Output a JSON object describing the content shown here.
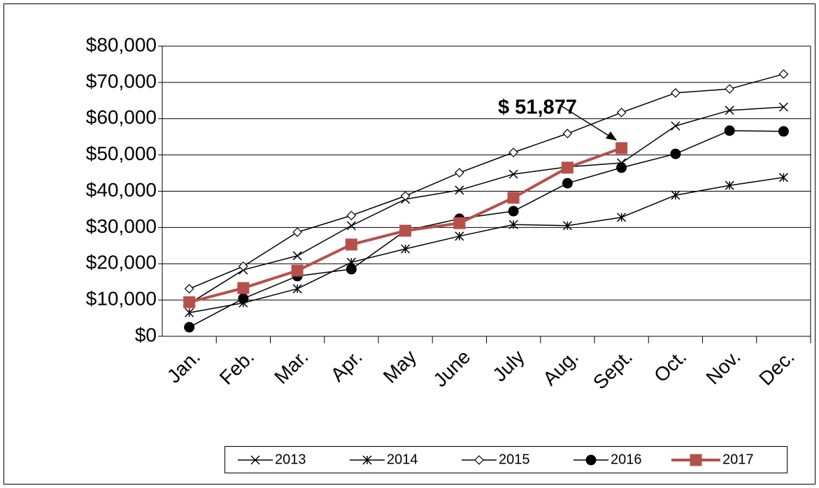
{
  "chart_data": {
    "type": "line",
    "annotation": "$ 51,877",
    "categories": [
      "Jan.",
      "Feb.",
      "Mar.",
      "Apr.",
      "May",
      "June",
      "July",
      "Aug.",
      "Sept.",
      "Oct.",
      "Nov.",
      "Dec."
    ],
    "series": [
      {
        "name": "2013",
        "color": "#000000",
        "marker": "x",
        "values": [
          9000,
          18300,
          22200,
          30500,
          37800,
          40300,
          44700,
          46700,
          47800,
          58000,
          62300,
          63200
        ]
      },
      {
        "name": "2014",
        "color": "#000000",
        "marker": "asterisk",
        "values": [
          6500,
          9200,
          13100,
          20400,
          24100,
          27600,
          30800,
          30500,
          32800,
          38900,
          41600,
          43800
        ]
      },
      {
        "name": "2015",
        "color": "#000000",
        "marker": "diamond",
        "values": [
          13100,
          19300,
          28700,
          33300,
          38700,
          45100,
          50700,
          55900,
          61700,
          67100,
          68200,
          72300
        ]
      },
      {
        "name": "2016",
        "color": "#000000",
        "marker": "circle",
        "values": [
          2500,
          10400,
          16600,
          18500,
          29100,
          32400,
          34500,
          42200,
          46500,
          50300,
          56700,
          56500
        ]
      },
      {
        "name": "2017",
        "color": "#b5504b",
        "marker": "square",
        "values": [
          9400,
          13300,
          18100,
          25300,
          29100,
          31200,
          38200,
          46500,
          51877,
          null,
          null,
          null
        ]
      }
    ],
    "ylim": [
      0,
      80000
    ],
    "yticks": [
      {
        "value": 0,
        "label": "$0"
      },
      {
        "value": 10000,
        "label": "$10,000"
      },
      {
        "value": 20000,
        "label": "$20,000"
      },
      {
        "value": 30000,
        "label": "$30,000"
      },
      {
        "value": 40000,
        "label": "$40,000"
      },
      {
        "value": 50000,
        "label": "$50,000"
      },
      {
        "value": 60000,
        "label": "$60,000"
      },
      {
        "value": 70000,
        "label": "$70,000"
      },
      {
        "value": 80000,
        "label": "$80,000"
      }
    ],
    "grid": true,
    "legend": "bottom"
  }
}
